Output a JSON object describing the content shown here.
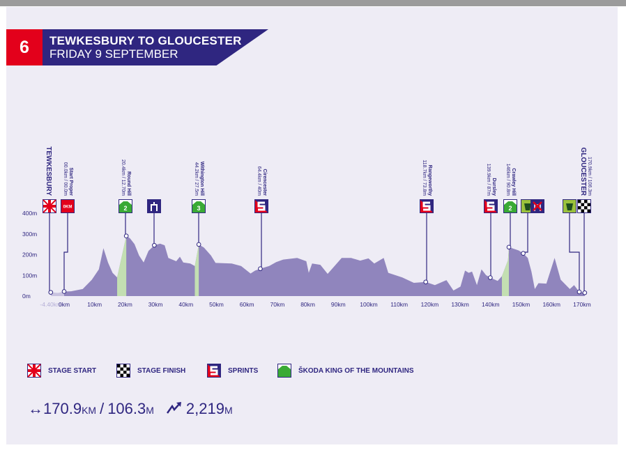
{
  "stage": {
    "number": "6",
    "title": "TEWKESBURY TO GLOUCESTER",
    "date": "FRIDAY 9 SEPTEMBER"
  },
  "colors": {
    "navy": "#2f2680",
    "red": "#e3001b",
    "profile": "#9085bd",
    "neutral": "#c9c3e0",
    "climb": "#c3dfb2",
    "kom_green": "#3aaa35",
    "feed_green": "#9bc23c",
    "background": "#eeecf5"
  },
  "chart_data": {
    "type": "area",
    "x_unit": "km",
    "y_unit": "m",
    "xlim": [
      -4.4,
      170.9
    ],
    "ylim": [
      0,
      400
    ],
    "y_ticks": [
      "0m",
      "100m",
      "200m",
      "300m",
      "400m"
    ],
    "y_tick_values": [
      0,
      100,
      200,
      300,
      400
    ],
    "x_ticks": [
      "-4.40km",
      "0km",
      "10km",
      "20km",
      "30km",
      "40km",
      "50km",
      "60km",
      "70km",
      "80km",
      "90km",
      "100km",
      "110km",
      "120km",
      "130km",
      "140km",
      "150km",
      "160km",
      "170km"
    ],
    "x_tick_values": [
      -4.4,
      0,
      10,
      20,
      30,
      40,
      50,
      60,
      70,
      80,
      90,
      100,
      110,
      120,
      130,
      140,
      150,
      160,
      170
    ],
    "neutral_zone": [
      [
        -4.4,
        18
      ],
      [
        -2,
        15
      ],
      [
        0,
        22
      ]
    ],
    "profile": [
      [
        0,
        22
      ],
      [
        2.3,
        23
      ],
      [
        6.1,
        34
      ],
      [
        9.1,
        79
      ],
      [
        11.4,
        129
      ],
      [
        12.9,
        231
      ],
      [
        14.4,
        162
      ],
      [
        15.9,
        112
      ],
      [
        17.4,
        90
      ],
      [
        20.4,
        290
      ],
      [
        21.6,
        279
      ],
      [
        23.1,
        251
      ],
      [
        24.6,
        196
      ],
      [
        26.1,
        162
      ],
      [
        27.7,
        218
      ],
      [
        29.6,
        245
      ],
      [
        31.5,
        253
      ],
      [
        33,
        245
      ],
      [
        34.2,
        184
      ],
      [
        36.8,
        168
      ],
      [
        38,
        190
      ],
      [
        39.1,
        162
      ],
      [
        41.4,
        157
      ],
      [
        42.9,
        145
      ],
      [
        44.2,
        249
      ],
      [
        45.9,
        234
      ],
      [
        48.2,
        196
      ],
      [
        49.7,
        160
      ],
      [
        55,
        157
      ],
      [
        58.1,
        145
      ],
      [
        61.2,
        109
      ],
      [
        62.7,
        123
      ],
      [
        64.4,
        132
      ],
      [
        67.3,
        145
      ],
      [
        69.6,
        164
      ],
      [
        71.9,
        176
      ],
      [
        76.5,
        184
      ],
      [
        79.5,
        168
      ],
      [
        80.3,
        112
      ],
      [
        81.4,
        157
      ],
      [
        84.1,
        151
      ],
      [
        86.5,
        107
      ],
      [
        91.1,
        184
      ],
      [
        94.2,
        184
      ],
      [
        97.2,
        171
      ],
      [
        99.9,
        182
      ],
      [
        101.8,
        157
      ],
      [
        104.9,
        184
      ],
      [
        106.4,
        112
      ],
      [
        111,
        90
      ],
      [
        114.8,
        64
      ],
      [
        118.7,
        68
      ],
      [
        121.7,
        53
      ],
      [
        125.5,
        77
      ],
      [
        127.8,
        27
      ],
      [
        130.1,
        46
      ],
      [
        131.6,
        123
      ],
      [
        132.8,
        112
      ],
      [
        133.9,
        118
      ],
      [
        135.5,
        53
      ],
      [
        137,
        129
      ],
      [
        138.5,
        101
      ],
      [
        139.9,
        89
      ],
      [
        142.3,
        73
      ],
      [
        143.7,
        96
      ],
      [
        145.7,
        173
      ],
      [
        146,
        236
      ],
      [
        149.2,
        220
      ],
      [
        150.7,
        206
      ],
      [
        152.2,
        184
      ],
      [
        153.4,
        118
      ],
      [
        154.5,
        34
      ],
      [
        155.7,
        62
      ],
      [
        158.3,
        60
      ],
      [
        161,
        184
      ],
      [
        163,
        79
      ],
      [
        166,
        34
      ],
      [
        167.4,
        53
      ],
      [
        169.1,
        20
      ],
      [
        170.9,
        16
      ]
    ],
    "climbs": [
      [
        17.4,
        20.4
      ],
      [
        42.9,
        44.2
      ],
      [
        143.7,
        146
      ]
    ],
    "markers": [
      {
        "icon": "stage-start-flag-icon",
        "name": "TEWKESBURY",
        "detail": "",
        "km": -4.4,
        "elev": 18,
        "big": true
      },
      {
        "icon": "okm-icon",
        "icon_text": "0KM",
        "name": "Start Proper",
        "detail": "00.0km / 00.0m",
        "km": 0,
        "elev": 22
      },
      {
        "icon": "kom-icon",
        "icon_text": "2",
        "name": "Round Hill",
        "detail": "20.4km / 12.70m",
        "km": 20.4,
        "elev": 290
      },
      {
        "icon": "gate-icon",
        "name": "",
        "detail": "",
        "km": 29.6,
        "elev": 245
      },
      {
        "icon": "kom-icon",
        "icon_text": "3",
        "name": "Withington Hill",
        "detail": "44.2km / 27.5m",
        "km": 44.2,
        "elev": 249
      },
      {
        "icon": "sprint-icon",
        "name": "Cirencester",
        "detail": "64.4km / 40m",
        "km": 64.4,
        "elev": 132
      },
      {
        "icon": "sprint-icon",
        "name": "Rangeworthy",
        "detail": "118.7km / 73.8m",
        "km": 118.7,
        "elev": 68
      },
      {
        "icon": "sprint-icon",
        "name": "Dursley",
        "detail": "139.9km / 87m",
        "km": 139.9,
        "elev": 89
      },
      {
        "icon": "kom-icon",
        "icon_text": "2",
        "name": "Crawley Hill",
        "detail": "146km / 90.8m",
        "km": 146,
        "elev": 236
      },
      {
        "icon": "feed-zone-icon",
        "name": "",
        "detail": "",
        "km": 150.7,
        "elev": 206,
        "pair": "no-feed-icon"
      },
      {
        "icon": "feed-zone-icon",
        "name": "",
        "detail": "",
        "km": 169.1,
        "elev": 20
      },
      {
        "icon": "stage-finish-flag-icon",
        "name": "GLOUCESTER",
        "detail": "170.9km / 106.3m",
        "km": 170.9,
        "elev": 16,
        "big": true
      }
    ]
  },
  "legend": [
    {
      "icon": "stage-start-flag-icon",
      "label": "STAGE START"
    },
    {
      "icon": "stage-finish-flag-icon",
      "label": "STAGE FINISH"
    },
    {
      "icon": "sprint-icon",
      "label": "SPRINTS"
    },
    {
      "icon": "kom-icon",
      "label": "ŠKODA KING OF THE MOUNTAINS"
    }
  ],
  "stats": {
    "distance_km": "170.9",
    "km_unit": "KM",
    "separator": "/",
    "distance_mi": "106.3",
    "mi_unit": "M",
    "climbing": "2,219",
    "climb_unit": "M",
    "distance_icon": "left-right-arrow-icon",
    "climb_icon": "zigzag-up-arrow-icon"
  }
}
